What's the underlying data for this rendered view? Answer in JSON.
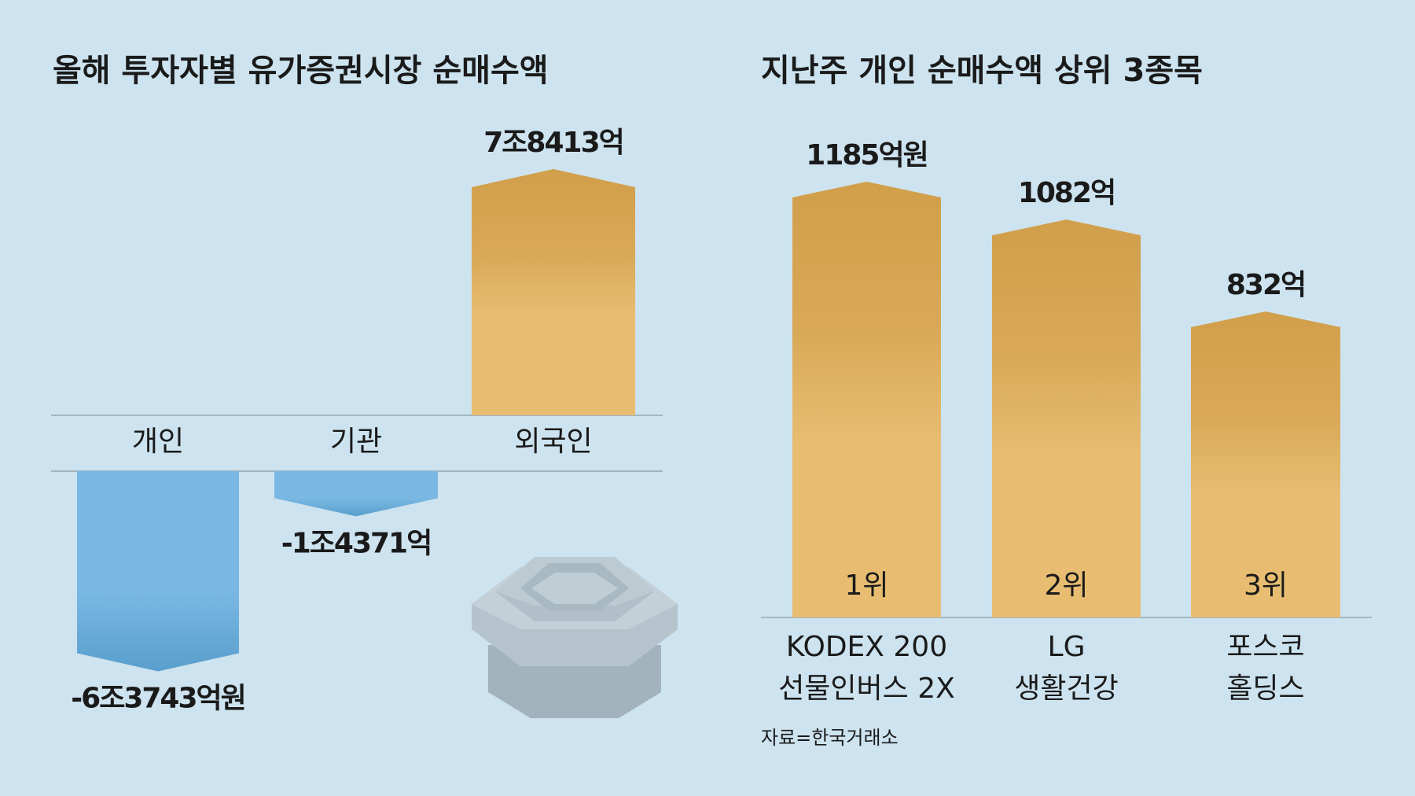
{
  "chart_data": [
    {
      "type": "bar",
      "title": "올해 투자자별 유가증권시장 순매수액",
      "categories": [
        "개인",
        "기관",
        "외국인"
      ],
      "values": [
        -63743,
        -14371,
        78413
      ],
      "value_labels": [
        "-6조3743억원",
        "-1조4371억",
        "7조8413억"
      ],
      "colors": [
        "#7ab8e3",
        "#7ab8e3",
        "#e8bd72"
      ]
    },
    {
      "type": "bar",
      "title": "지난주 개인 순매수액 상위 3종목",
      "categories": [
        "KODEX 200\n선물인버스 2X",
        "LG\n생활건강",
        "포스코\n홀딩스"
      ],
      "values": [
        1185,
        1082,
        832
      ],
      "value_labels": [
        "1185억원",
        "1082억",
        "832억"
      ],
      "rank_labels": [
        "1위",
        "2위",
        "3위"
      ],
      "color": "#e8bd72",
      "source": "자료=한국거래소"
    }
  ]
}
